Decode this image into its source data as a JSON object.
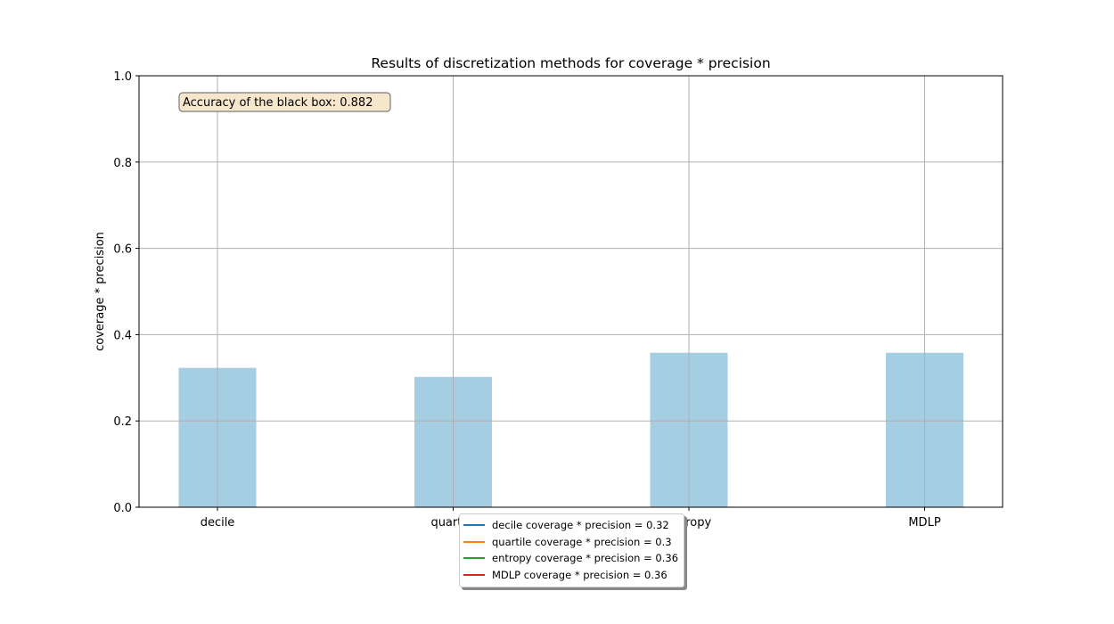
{
  "chart_data": {
    "type": "bar",
    "title": "Results of discretization methods for coverage * precision",
    "xlabel": "",
    "ylabel": "coverage * precision",
    "categories": [
      "decile",
      "quartile",
      "entropy",
      "MDLP"
    ],
    "values": [
      0.323,
      0.302,
      0.358,
      0.358
    ],
    "ylim": [
      0,
      1
    ],
    "yticks": [
      "0.0",
      "0.2",
      "0.4",
      "0.6",
      "0.8",
      "1.0"
    ],
    "grid": true,
    "bar_color": "#a6cee3",
    "annotation": {
      "text": "Accuracy of the black box: 0.882",
      "box_color": "#f5e6cc",
      "placement": "top-left"
    },
    "legend": {
      "placement": "bottom-center",
      "entries": [
        {
          "label": "decile coverage * precision = 0.32",
          "color": "#1f77b4"
        },
        {
          "label": "quartile coverage * precision = 0.3",
          "color": "#ff7f0e"
        },
        {
          "label": "entropy coverage * precision = 0.36",
          "color": "#2ca02c"
        },
        {
          "label": "MDLP coverage * precision = 0.36",
          "color": "#d62728"
        }
      ]
    }
  }
}
